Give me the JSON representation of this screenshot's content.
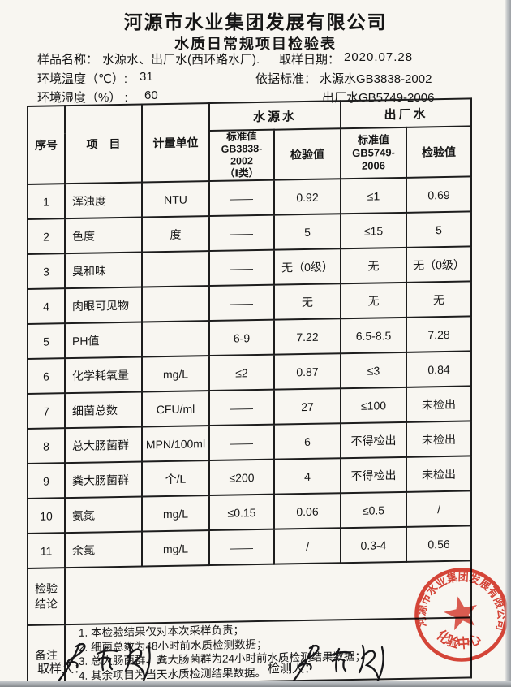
{
  "header": {
    "company": "河源市水业集团发展有限公司",
    "title": "水质日常规项目检验表"
  },
  "meta": {
    "sample_label": "样品名称：",
    "sample_value": "水源水、出厂水(西环路水厂).",
    "date_label": "取样日期：",
    "date_value": "2020.07.28",
    "temperature_label": "环境温度（℃）:",
    "temperature_value": "31",
    "standard_label": "依据标准：",
    "standard_source_water": "水源水GB3838-2002",
    "humidity_label": "环境湿度（%） :",
    "humidity_value": "60",
    "standard_outlet_water": "出厂水GB5749-2006"
  },
  "table": {
    "header": {
      "no": "序号",
      "item": "项　目",
      "unit": "计量单位",
      "group_source": "水源水",
      "group_outlet": "出厂水",
      "source_standard": "标准值\nGB3838-2002\n（Ⅰ类）",
      "source_value": "检验值",
      "outlet_standard": "标准值\nGB5749-2006",
      "outlet_value": "检验值"
    },
    "rows": [
      {
        "no": "1",
        "item": "浑浊度",
        "unit": "NTU",
        "src_std": "——",
        "src_val": "0.92",
        "out_std": "≤1",
        "out_val": "0.69"
      },
      {
        "no": "2",
        "item": "色度",
        "unit": "度",
        "src_std": "——",
        "src_val": "5",
        "out_std": "≤15",
        "out_val": "5"
      },
      {
        "no": "3",
        "item": "臭和味",
        "unit": "",
        "src_std": "——",
        "src_val": "无（0级）",
        "out_std": "无",
        "out_val": "无（0级）"
      },
      {
        "no": "4",
        "item": "肉眼可见物",
        "unit": "",
        "src_std": "——",
        "src_val": "无",
        "out_std": "无",
        "out_val": "无"
      },
      {
        "no": "5",
        "item": "PH值",
        "unit": "",
        "src_std": "6-9",
        "src_val": "7.22",
        "out_std": "6.5-8.5",
        "out_val": "7.28"
      },
      {
        "no": "6",
        "item": "化学耗氧量",
        "unit": "mg/L",
        "src_std": "≤2",
        "src_val": "0.87",
        "out_std": "≤3",
        "out_val": "0.84"
      },
      {
        "no": "7",
        "item": "细菌总数",
        "unit": "CFU/ml",
        "src_std": "——",
        "src_val": "27",
        "out_std": "≤100",
        "out_val": "未检出"
      },
      {
        "no": "8",
        "item": "总大肠菌群",
        "unit": "MPN/100ml",
        "src_std": "——",
        "src_val": "6",
        "out_std": "不得检出",
        "out_val": "未检出"
      },
      {
        "no": "9",
        "item": "粪大肠菌群",
        "unit": "个/L",
        "src_std": "≤200",
        "src_val": "4",
        "out_std": "不得检出",
        "out_val": "未检出"
      },
      {
        "no": "10",
        "item": "氨氮",
        "unit": "mg/L",
        "src_std": "≤0.15",
        "src_val": "0.06",
        "out_std": "≤0.5",
        "out_val": "/"
      },
      {
        "no": "11",
        "item": "余氯",
        "unit": "mg/L",
        "src_std": "——",
        "src_val": "/",
        "out_std": "0.3-4",
        "out_val": "0.56"
      }
    ],
    "conclusion_label": "检验\n结论",
    "conclusion_value": "",
    "remarks_label": "备注",
    "remarks": [
      "1. 本检验结果仅对本次采样负责；",
      "2. 细菌总数为48小时前水质检测数据；",
      "3. 总大肠菌群、粪大肠菌群为24小时前水质检测结果数据；",
      "4. 其余项目为当天水质检测结果数据。"
    ]
  },
  "footer": {
    "sampler_label": "取样人：",
    "tester_label": "检测人："
  },
  "seal": {
    "ring_text": "河源市水业集团发展有限公司",
    "center_text": "化验中心",
    "color": "#d8392c"
  }
}
